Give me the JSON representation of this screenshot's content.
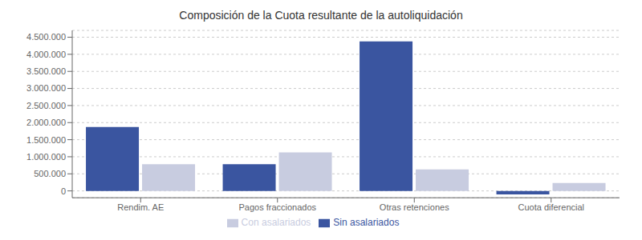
{
  "chart_data": {
    "type": "bar",
    "title": "Composición de la Cuota resultante de la autoliquidación",
    "categories": [
      "Rendim. AE",
      "Pagos fraccionados",
      "Otras retenciones",
      "Cuota diferencial"
    ],
    "series": [
      {
        "name": "Sin asalariados",
        "color": "#3a55a0",
        "values": [
          1870000,
          780000,
          4380000,
          -100000
        ]
      },
      {
        "name": "Con asalariados",
        "color": "#c8cce0",
        "values": [
          780000,
          1130000,
          630000,
          230000
        ]
      }
    ],
    "ylim": [
      -200000,
      4700000
    ],
    "yticks": [
      0,
      {
        "value": 500000,
        "label": "500.000"
      },
      {
        "value": 1000000,
        "label": "1.000.000"
      },
      {
        "value": 1500000,
        "label": "1.500.000"
      },
      {
        "value": 2000000,
        "label": "2.000.000"
      },
      {
        "value": 2500000,
        "label": "2.500.000"
      },
      {
        "value": 3000000,
        "label": "3.000.000"
      },
      {
        "value": 3500000,
        "label": "3.500.000"
      },
      {
        "value": 4000000,
        "label": "4.000.000"
      },
      {
        "value": 4500000,
        "label": "4.500.000"
      }
    ],
    "grid": true,
    "legend": "bottom"
  }
}
